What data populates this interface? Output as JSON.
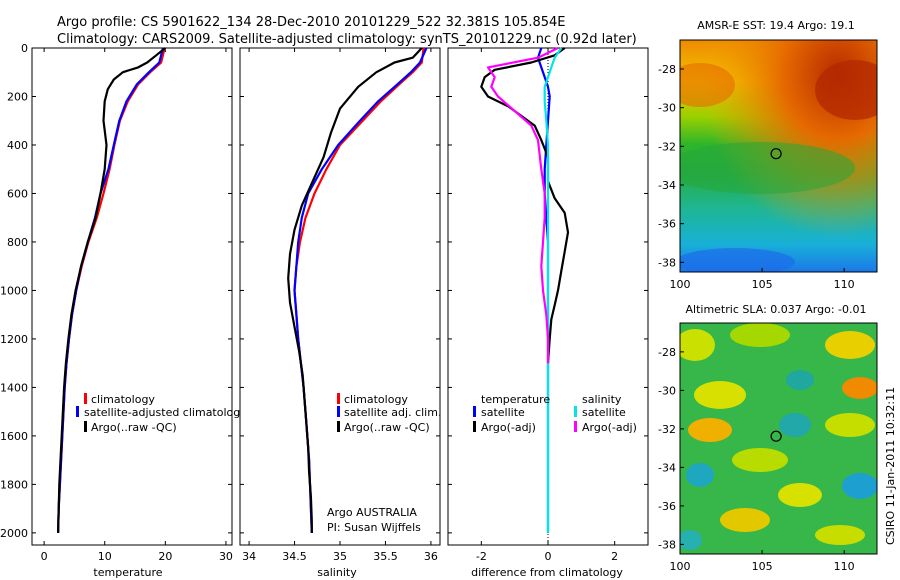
{
  "header": {
    "line1": "Argo profile: CS 5901622_134 28-Dec-2010 20101229_522 32.381S 105.854E",
    "line2": "Climatology: CARS2009. Satellite-adjusted climatology: synTS_20101229.nc (0.92d later)"
  },
  "footer_note": "CSIRO 11-Jan-2011 10:32:11",
  "colors": {
    "climatology": "#ff0000",
    "satellite": "#0000ff",
    "argo": "#000000",
    "salinity_satellite": "#00e5e5",
    "salinity_argo": "#ff00ff"
  },
  "chart_data": [
    {
      "id": "temperature",
      "type": "line",
      "xlabel": "temperature",
      "ylabel": "",
      "xlim": [
        -2,
        31
      ],
      "ylim": [
        2050,
        0
      ],
      "x_ticks": [
        "0",
        "10",
        "20",
        "30"
      ],
      "x_tick_values": [
        0,
        10,
        20,
        30
      ],
      "y_ticks": [
        "0",
        "200",
        "400",
        "600",
        "800",
        "1000",
        "1200",
        "1400",
        "1600",
        "1800",
        "2000"
      ],
      "y_tick_values": [
        0,
        200,
        400,
        600,
        800,
        1000,
        1200,
        1400,
        1600,
        1800,
        2000
      ],
      "legend_labels": [
        "climatology",
        "satellite-adjusted climatolog",
        "Argo(..raw -QC)"
      ],
      "series": [
        {
          "color": "climatology",
          "points": [
            [
              19.9,
              0
            ],
            [
              19.3,
              60
            ],
            [
              17.5,
              100
            ],
            [
              15.5,
              150
            ],
            [
              13.8,
              220
            ],
            [
              12.5,
              300
            ],
            [
              11.6,
              400
            ],
            [
              10.8,
              500
            ],
            [
              9.8,
              600
            ],
            [
              8.7,
              700
            ],
            [
              7.3,
              800
            ],
            [
              6.2,
              900
            ],
            [
              5.3,
              1000
            ],
            [
              4.6,
              1100
            ],
            [
              4.1,
              1200
            ],
            [
              3.7,
              1300
            ],
            [
              3.4,
              1400
            ],
            [
              3.2,
              1500
            ],
            [
              3.0,
              1600
            ],
            [
              2.8,
              1700
            ],
            [
              2.6,
              1800
            ],
            [
              2.4,
              1900
            ],
            [
              2.3,
              2000
            ]
          ]
        },
        {
          "color": "satellite",
          "points": [
            [
              19.6,
              0
            ],
            [
              19.0,
              60
            ],
            [
              17.3,
              100
            ],
            [
              15.3,
              150
            ],
            [
              13.6,
              220
            ],
            [
              12.4,
              300
            ],
            [
              11.5,
              400
            ],
            [
              10.6,
              500
            ],
            [
              9.3,
              600
            ],
            [
              8.4,
              700
            ],
            [
              7.2,
              800
            ],
            [
              6.1,
              900
            ],
            [
              5.3,
              1000
            ],
            [
              4.6,
              1100
            ],
            [
              4.1,
              1200
            ],
            [
              3.7,
              1300
            ],
            [
              3.4,
              1400
            ],
            [
              3.2,
              1500
            ],
            [
              3.0,
              1600
            ],
            [
              2.8,
              1700
            ],
            [
              2.6,
              1800
            ],
            [
              2.4,
              1900
            ],
            [
              2.3,
              2000
            ]
          ]
        },
        {
          "color": "argo",
          "points": [
            [
              20.0,
              0
            ],
            [
              18.5,
              30
            ],
            [
              17.0,
              60
            ],
            [
              15.5,
              80
            ],
            [
              13.0,
              100
            ],
            [
              11.5,
              130
            ],
            [
              10.5,
              170
            ],
            [
              10.0,
              220
            ],
            [
              9.8,
              300
            ],
            [
              10.3,
              400
            ],
            [
              10.0,
              500
            ],
            [
              9.3,
              600
            ],
            [
              8.5,
              700
            ],
            [
              7.2,
              800
            ],
            [
              6.1,
              900
            ],
            [
              5.2,
              1000
            ],
            [
              4.5,
              1100
            ],
            [
              4.0,
              1200
            ],
            [
              3.6,
              1300
            ],
            [
              3.3,
              1400
            ],
            [
              3.1,
              1500
            ],
            [
              2.9,
              1600
            ],
            [
              2.7,
              1700
            ],
            [
              2.5,
              1800
            ],
            [
              2.4,
              1900
            ],
            [
              2.3,
              2000
            ]
          ]
        }
      ]
    },
    {
      "id": "salinity",
      "type": "line",
      "xlabel": "salinity",
      "ylabel": "",
      "xlim": [
        33.9,
        36.1
      ],
      "ylim": [
        2050,
        0
      ],
      "x_ticks": [
        "34",
        "34.5",
        "35",
        "35.5",
        "36"
      ],
      "x_tick_values": [
        34,
        34.5,
        35,
        35.5,
        36
      ],
      "legend_labels": [
        "climatology",
        "satellite adj. clim.",
        "Argo(..raw -QC)"
      ],
      "annotation_lines": [
        "Argo AUSTRALIA",
        "PI: Susan Wijffels"
      ],
      "series": [
        {
          "color": "climatology",
          "points": [
            [
              35.92,
              0
            ],
            [
              35.9,
              60
            ],
            [
              35.8,
              100
            ],
            [
              35.65,
              150
            ],
            [
              35.45,
              220
            ],
            [
              35.25,
              300
            ],
            [
              35.0,
              400
            ],
            [
              34.85,
              500
            ],
            [
              34.72,
              600
            ],
            [
              34.62,
              700
            ],
            [
              34.56,
              800
            ],
            [
              34.52,
              900
            ],
            [
              34.5,
              1000
            ],
            [
              34.52,
              1100
            ],
            [
              34.54,
              1200
            ],
            [
              34.57,
              1300
            ],
            [
              34.6,
              1400
            ],
            [
              34.62,
              1500
            ],
            [
              34.64,
              1600
            ],
            [
              34.66,
              1700
            ],
            [
              34.67,
              1800
            ],
            [
              34.68,
              1900
            ],
            [
              34.69,
              2000
            ]
          ]
        },
        {
          "color": "satellite",
          "points": [
            [
              35.95,
              0
            ],
            [
              35.88,
              60
            ],
            [
              35.78,
              100
            ],
            [
              35.63,
              150
            ],
            [
              35.42,
              220
            ],
            [
              35.22,
              300
            ],
            [
              34.98,
              400
            ],
            [
              34.8,
              500
            ],
            [
              34.65,
              600
            ],
            [
              34.58,
              700
            ],
            [
              34.54,
              800
            ],
            [
              34.52,
              900
            ],
            [
              34.5,
              1000
            ],
            [
              34.52,
              1100
            ],
            [
              34.54,
              1200
            ],
            [
              34.57,
              1300
            ],
            [
              34.6,
              1400
            ],
            [
              34.62,
              1500
            ],
            [
              34.64,
              1600
            ],
            [
              34.66,
              1700
            ],
            [
              34.67,
              1800
            ],
            [
              34.68,
              1900
            ],
            [
              34.69,
              2000
            ]
          ]
        },
        {
          "color": "argo",
          "points": [
            [
              35.9,
              0
            ],
            [
              35.8,
              40
            ],
            [
              35.6,
              60
            ],
            [
              35.4,
              100
            ],
            [
              35.2,
              160
            ],
            [
              35.0,
              250
            ],
            [
              34.9,
              350
            ],
            [
              34.82,
              450
            ],
            [
              34.7,
              550
            ],
            [
              34.58,
              650
            ],
            [
              34.5,
              750
            ],
            [
              34.45,
              850
            ],
            [
              34.43,
              950
            ],
            [
              34.45,
              1050
            ],
            [
              34.5,
              1150
            ],
            [
              34.55,
              1250
            ],
            [
              34.59,
              1350
            ],
            [
              34.61,
              1450
            ],
            [
              34.63,
              1550
            ],
            [
              34.65,
              1650
            ],
            [
              34.66,
              1750
            ],
            [
              34.68,
              1850
            ],
            [
              34.69,
              1950
            ],
            [
              34.69,
              2000
            ]
          ]
        }
      ]
    },
    {
      "id": "difference",
      "type": "line",
      "xlabel": "difference from climatology",
      "ylabel": "",
      "xlim": [
        -3,
        3
      ],
      "ylim": [
        2050,
        0
      ],
      "x_ticks": [
        "-2",
        "0",
        "2"
      ],
      "x_tick_values": [
        -2,
        0,
        2
      ],
      "legend_headings": [
        "temperature",
        "salinity"
      ],
      "legend_labels": [
        "satellite",
        "Argo(-adj)",
        "satellite",
        "Argo(-adj)"
      ],
      "series": [
        {
          "color": "satellite",
          "points": [
            [
              -0.2,
              0
            ],
            [
              -0.3,
              40
            ],
            [
              -0.2,
              80
            ],
            [
              -0.1,
              120
            ],
            [
              0.0,
              160
            ],
            [
              0.05,
              200
            ],
            [
              0.0,
              300
            ],
            [
              -0.05,
              400
            ],
            [
              -0.1,
              500
            ],
            [
              -0.1,
              600
            ],
            [
              -0.05,
              700
            ],
            [
              0.0,
              800
            ],
            [
              0.0,
              900
            ],
            [
              0.0,
              1000
            ],
            [
              0.0,
              1100
            ],
            [
              0.0,
              1200
            ],
            [
              0.0,
              1300
            ],
            [
              0.0,
              1400
            ],
            [
              0.0,
              1500
            ],
            [
              0.0,
              1600
            ],
            [
              0.0,
              1700
            ],
            [
              0.0,
              1800
            ],
            [
              0.0,
              1900
            ],
            [
              0.0,
              2000
            ]
          ]
        },
        {
          "color": "argo",
          "points": [
            [
              0.5,
              0
            ],
            [
              0.2,
              30
            ],
            [
              -0.5,
              60
            ],
            [
              -1.6,
              90
            ],
            [
              -1.9,
              120
            ],
            [
              -2.0,
              160
            ],
            [
              -1.8,
              200
            ],
            [
              -1.2,
              240
            ],
            [
              -0.8,
              280
            ],
            [
              -0.4,
              320
            ],
            [
              -0.2,
              380
            ],
            [
              0.0,
              450
            ],
            [
              0.0,
              550
            ],
            [
              0.2,
              620
            ],
            [
              0.5,
              680
            ],
            [
              0.6,
              760
            ],
            [
              0.5,
              840
            ],
            [
              0.4,
              920
            ],
            [
              0.3,
              1000
            ],
            [
              0.2,
              1060
            ],
            [
              0.1,
              1120
            ],
            [
              0.05,
              1200
            ],
            [
              0.0,
              1300
            ]
          ]
        },
        {
          "color": "salinity_satellite",
          "points": [
            [
              0.4,
              0
            ],
            [
              0.2,
              40
            ],
            [
              0.1,
              80
            ],
            [
              0.0,
              120
            ],
            [
              -0.1,
              160
            ],
            [
              -0.1,
              220
            ],
            [
              -0.05,
              300
            ],
            [
              0.0,
              400
            ],
            [
              0.0,
              600
            ],
            [
              0.0,
              800
            ],
            [
              0.0,
              1000
            ],
            [
              0.0,
              1200
            ],
            [
              0.0,
              1400
            ],
            [
              0.0,
              1600
            ],
            [
              0.0,
              1800
            ],
            [
              0.0,
              2000
            ]
          ]
        },
        {
          "color": "salinity_argo",
          "points": [
            [
              0.3,
              0
            ],
            [
              -0.3,
              40
            ],
            [
              -1.8,
              80
            ],
            [
              -1.6,
              120
            ],
            [
              -1.7,
              160
            ],
            [
              -1.5,
              200
            ],
            [
              -1.0,
              260
            ],
            [
              -0.5,
              320
            ],
            [
              -0.3,
              380
            ],
            [
              -0.2,
              500
            ],
            [
              -0.1,
              600
            ],
            [
              -0.1,
              700
            ],
            [
              -0.15,
              800
            ],
            [
              -0.2,
              900
            ],
            [
              -0.15,
              1000
            ],
            [
              -0.05,
              1100
            ],
            [
              0.0,
              1200
            ],
            [
              0.0,
              1300
            ]
          ]
        }
      ]
    }
  ],
  "maps": [
    {
      "title": "AMSR-E SST: 19.4 Argo: 19.1",
      "x_ticks": [
        "100",
        "105",
        "110"
      ],
      "x_tick_values": [
        100,
        105,
        110
      ],
      "y_ticks": [
        "-28",
        "-30",
        "-32",
        "-34",
        "-36",
        "-38"
      ],
      "y_tick_values": [
        -28,
        -30,
        -32,
        -34,
        -36,
        -38
      ],
      "xlim": [
        100,
        112
      ],
      "ylim": [
        -38.5,
        -26.5
      ],
      "profile_position": [
        105.854,
        -32.381
      ]
    },
    {
      "title": "Altimetric SLA: 0.037 Argo: -0.01",
      "x_ticks": [
        "100",
        "105",
        "110"
      ],
      "x_tick_values": [
        100,
        105,
        110
      ],
      "y_ticks": [
        "-28",
        "-30",
        "-32",
        "-34",
        "-36",
        "-38"
      ],
      "y_tick_values": [
        -28,
        -30,
        -32,
        -34,
        -36,
        -38
      ],
      "xlim": [
        100,
        112
      ],
      "ylim": [
        -38.5,
        -26.5
      ],
      "profile_position": [
        105.854,
        -32.381
      ]
    }
  ]
}
